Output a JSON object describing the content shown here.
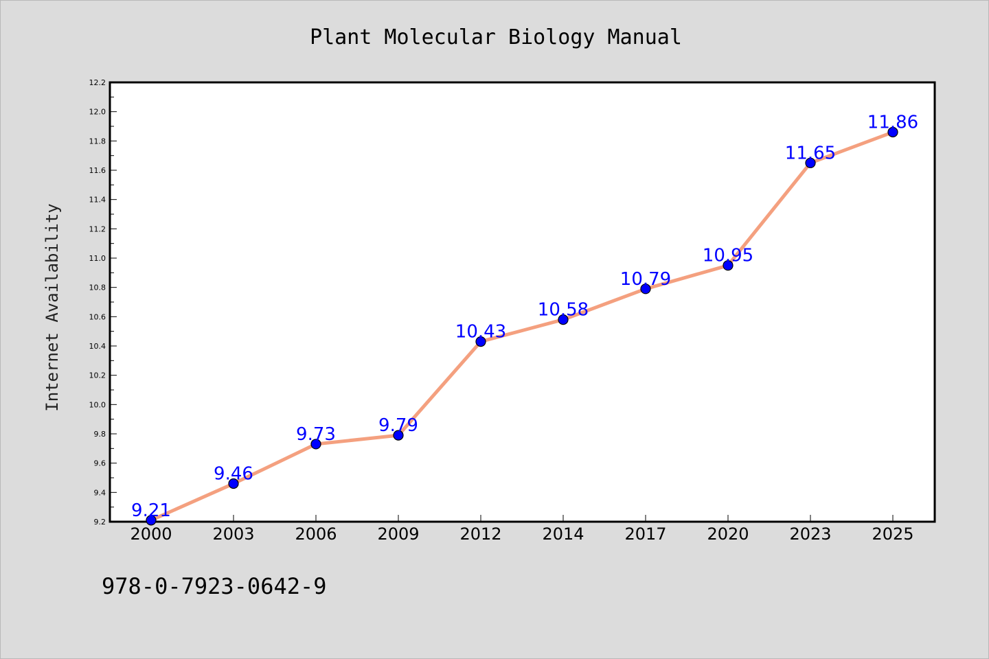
{
  "title": "Plant Molecular Biology Manual",
  "isbn": "978-0-7923-0642-9",
  "colors": {
    "background": "#dcdcdc",
    "plot_area": "#ffffff",
    "line": "#f4a07f",
    "marker": "#0000ff",
    "data_label": "#0000ff"
  },
  "chart_data": {
    "type": "line",
    "title": "Plant Molecular Biology Manual",
    "xlabel": "",
    "ylabel": "Internet Availability",
    "categories": [
      "2000",
      "2003",
      "2006",
      "2009",
      "2012",
      "2014",
      "2017",
      "2020",
      "2023",
      "2025"
    ],
    "series": [
      {
        "values": [
          9.21,
          9.46,
          9.73,
          9.79,
          10.43,
          10.58,
          10.79,
          10.95,
          11.65,
          11.86
        ]
      }
    ],
    "data_labels": [
      "9.21",
      "9.46",
      "9.73",
      "9.79",
      "10.43",
      "10.58",
      "10.79",
      "10.95",
      "11.65",
      "11.86"
    ],
    "ylim": [
      9.2,
      12.2
    ],
    "yticks": [
      "9.2",
      "9.4",
      "9.6",
      "9.8",
      "10.0",
      "10.2",
      "10.4",
      "10.6",
      "10.8",
      "11.0",
      "11.2",
      "11.4",
      "11.6",
      "11.8",
      "12.0",
      "12.2"
    ],
    "grid": false,
    "legend": "none"
  }
}
